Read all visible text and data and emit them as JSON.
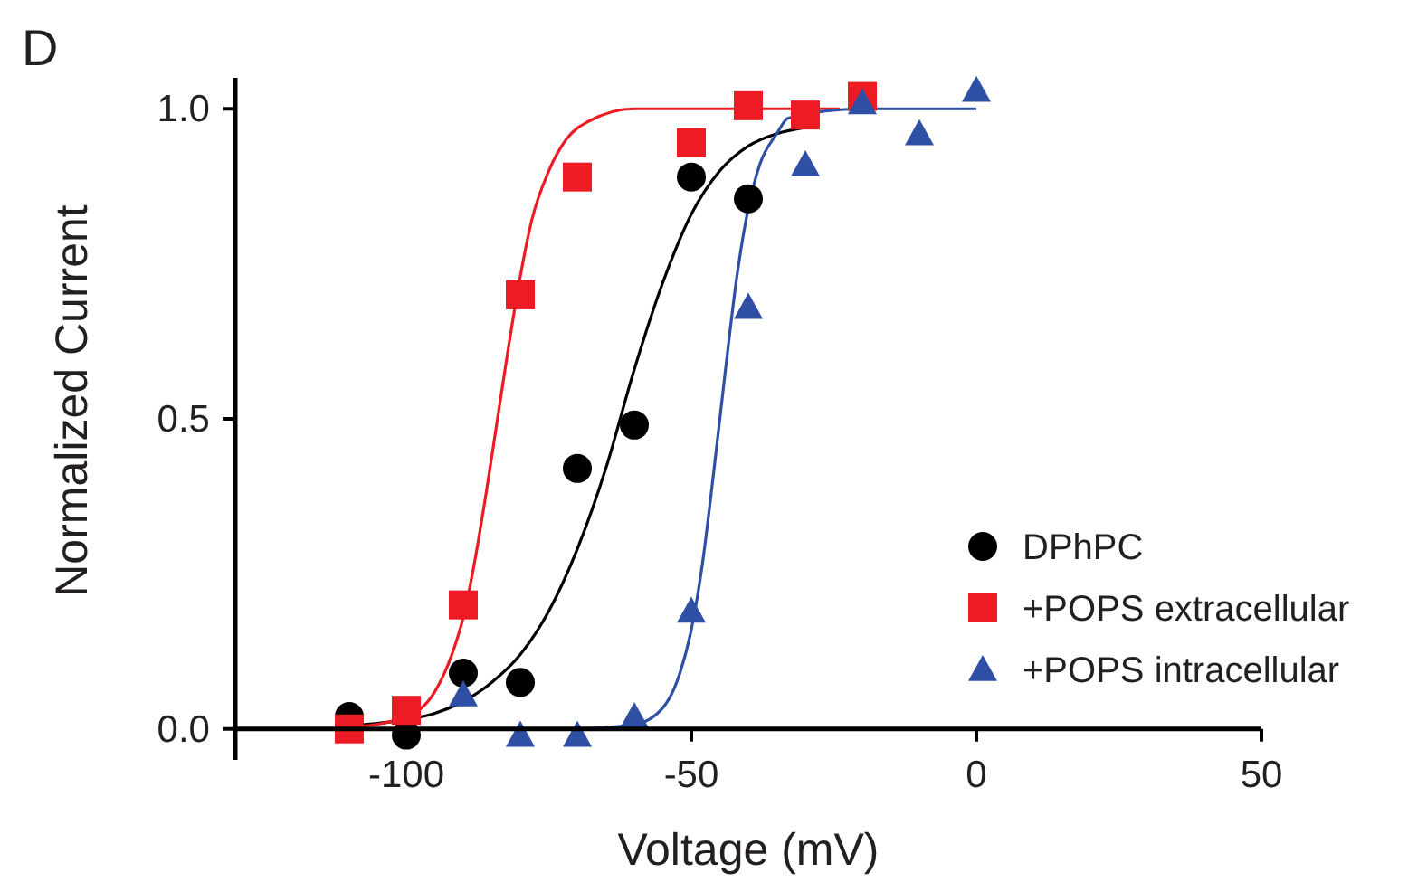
{
  "chart_data": {
    "type": "scatter",
    "xlabel": "Voltage (mV)",
    "ylabel": "Normalized Current",
    "annotations": [
      "D"
    ],
    "xlim": [
      -130,
      50
    ],
    "xticks": [
      -100,
      -50,
      0,
      50
    ],
    "ylim": [
      -0.05,
      1.05
    ],
    "yticks": [
      {
        "value": 0,
        "label": "0.0"
      },
      0.5,
      {
        "value": 1,
        "label": "1.0"
      }
    ],
    "legend": "bottom right",
    "series": [
      {
        "name": "DPhPC",
        "color": "#000000",
        "marker": "circle",
        "x": [
          -110,
          -100,
          -90,
          -80,
          -70,
          -60,
          -50,
          -40
        ],
        "values": [
          0.02,
          -0.01,
          0.09,
          0.075,
          0.42,
          0.49,
          0.89,
          0.855
        ]
      },
      {
        "name": "+POPS extracellular",
        "color": "#ed1c24",
        "marker": "square",
        "x": [
          -110,
          -100,
          -90,
          -80,
          -70,
          -50,
          -40,
          -30,
          -20
        ],
        "values": [
          0.0,
          0.03,
          0.2,
          0.7,
          0.89,
          0.945,
          1.005,
          0.99,
          1.02
        ]
      },
      {
        "name": "+POPS intracellular",
        "color": "#2e4fa3",
        "marker": "triangle",
        "x": [
          -90,
          -80,
          -70,
          -60,
          -50,
          -40,
          -30,
          -20,
          -10,
          0
        ],
        "values": [
          0.055,
          -0.01,
          -0.01,
          0.02,
          0.19,
          0.68,
          0.91,
          1.01,
          0.96,
          1.03
        ]
      },
      {
        "type": "line",
        "color": "#000000",
        "x": [
          -110,
          -100,
          -95,
          -85,
          -80,
          -75,
          -70,
          -65,
          -60,
          -55,
          -50,
          -45,
          -40,
          -35,
          -30
        ],
        "values": [
          0.005,
          0.015,
          0.025,
          0.075,
          0.12,
          0.19,
          0.29,
          0.42,
          0.58,
          0.72,
          0.83,
          0.9,
          0.94,
          0.96,
          0.97
        ]
      },
      {
        "type": "line",
        "color": "#ed1c24",
        "x": [
          -110,
          -100,
          -95,
          -92,
          -90,
          -88,
          -86,
          -84,
          -82,
          -80,
          -78,
          -75,
          -72,
          -68,
          -60,
          -45,
          -24
        ],
        "values": [
          0.002,
          0.02,
          0.06,
          0.12,
          0.18,
          0.27,
          0.38,
          0.5,
          0.62,
          0.73,
          0.82,
          0.9,
          0.95,
          0.98,
          1.0,
          1.0,
          1.0
        ]
      },
      {
        "type": "line",
        "color": "#2e4fa3",
        "x": [
          -90,
          -70,
          -60,
          -55,
          -52,
          -50,
          -48,
          -46,
          -44,
          -42,
          -40,
          -38,
          -35,
          -33,
          -20,
          0
        ],
        "values": [
          0.0,
          0.0,
          0.007,
          0.034,
          0.09,
          0.16,
          0.27,
          0.42,
          0.58,
          0.73,
          0.84,
          0.91,
          0.96,
          0.985,
          1.0,
          1.0
        ]
      }
    ]
  }
}
